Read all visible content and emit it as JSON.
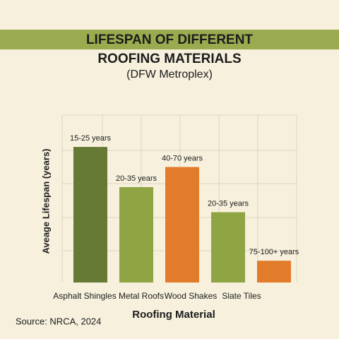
{
  "chart_data": {
    "type": "bar",
    "title": [
      "LIFESPAN OF DIFFERENT",
      "ROOFING MATERIALS"
    ],
    "subtitle": "(DFW Metroplex)",
    "y_label": "Aveage Lifespan (years)",
    "x_label": "Roofing Material",
    "source": "Source: NRCA, 2024",
    "categories": [
      "Asphalt Shingles",
      "Metal Roofs",
      "Wood Shakes",
      "Slate Tiles",
      null
    ],
    "values": [
      4.05,
      2.85,
      3.45,
      2.1,
      0.65
    ],
    "annotations": [
      "15-25 years",
      "20-35 years",
      "40-70 years",
      "20-35 years",
      "75-100+ years"
    ],
    "colors": [
      "#667a35",
      "#8fa443",
      "#e27b2a",
      "#8fa443",
      "#e27b2a"
    ],
    "ylim": [
      0,
      5
    ]
  }
}
